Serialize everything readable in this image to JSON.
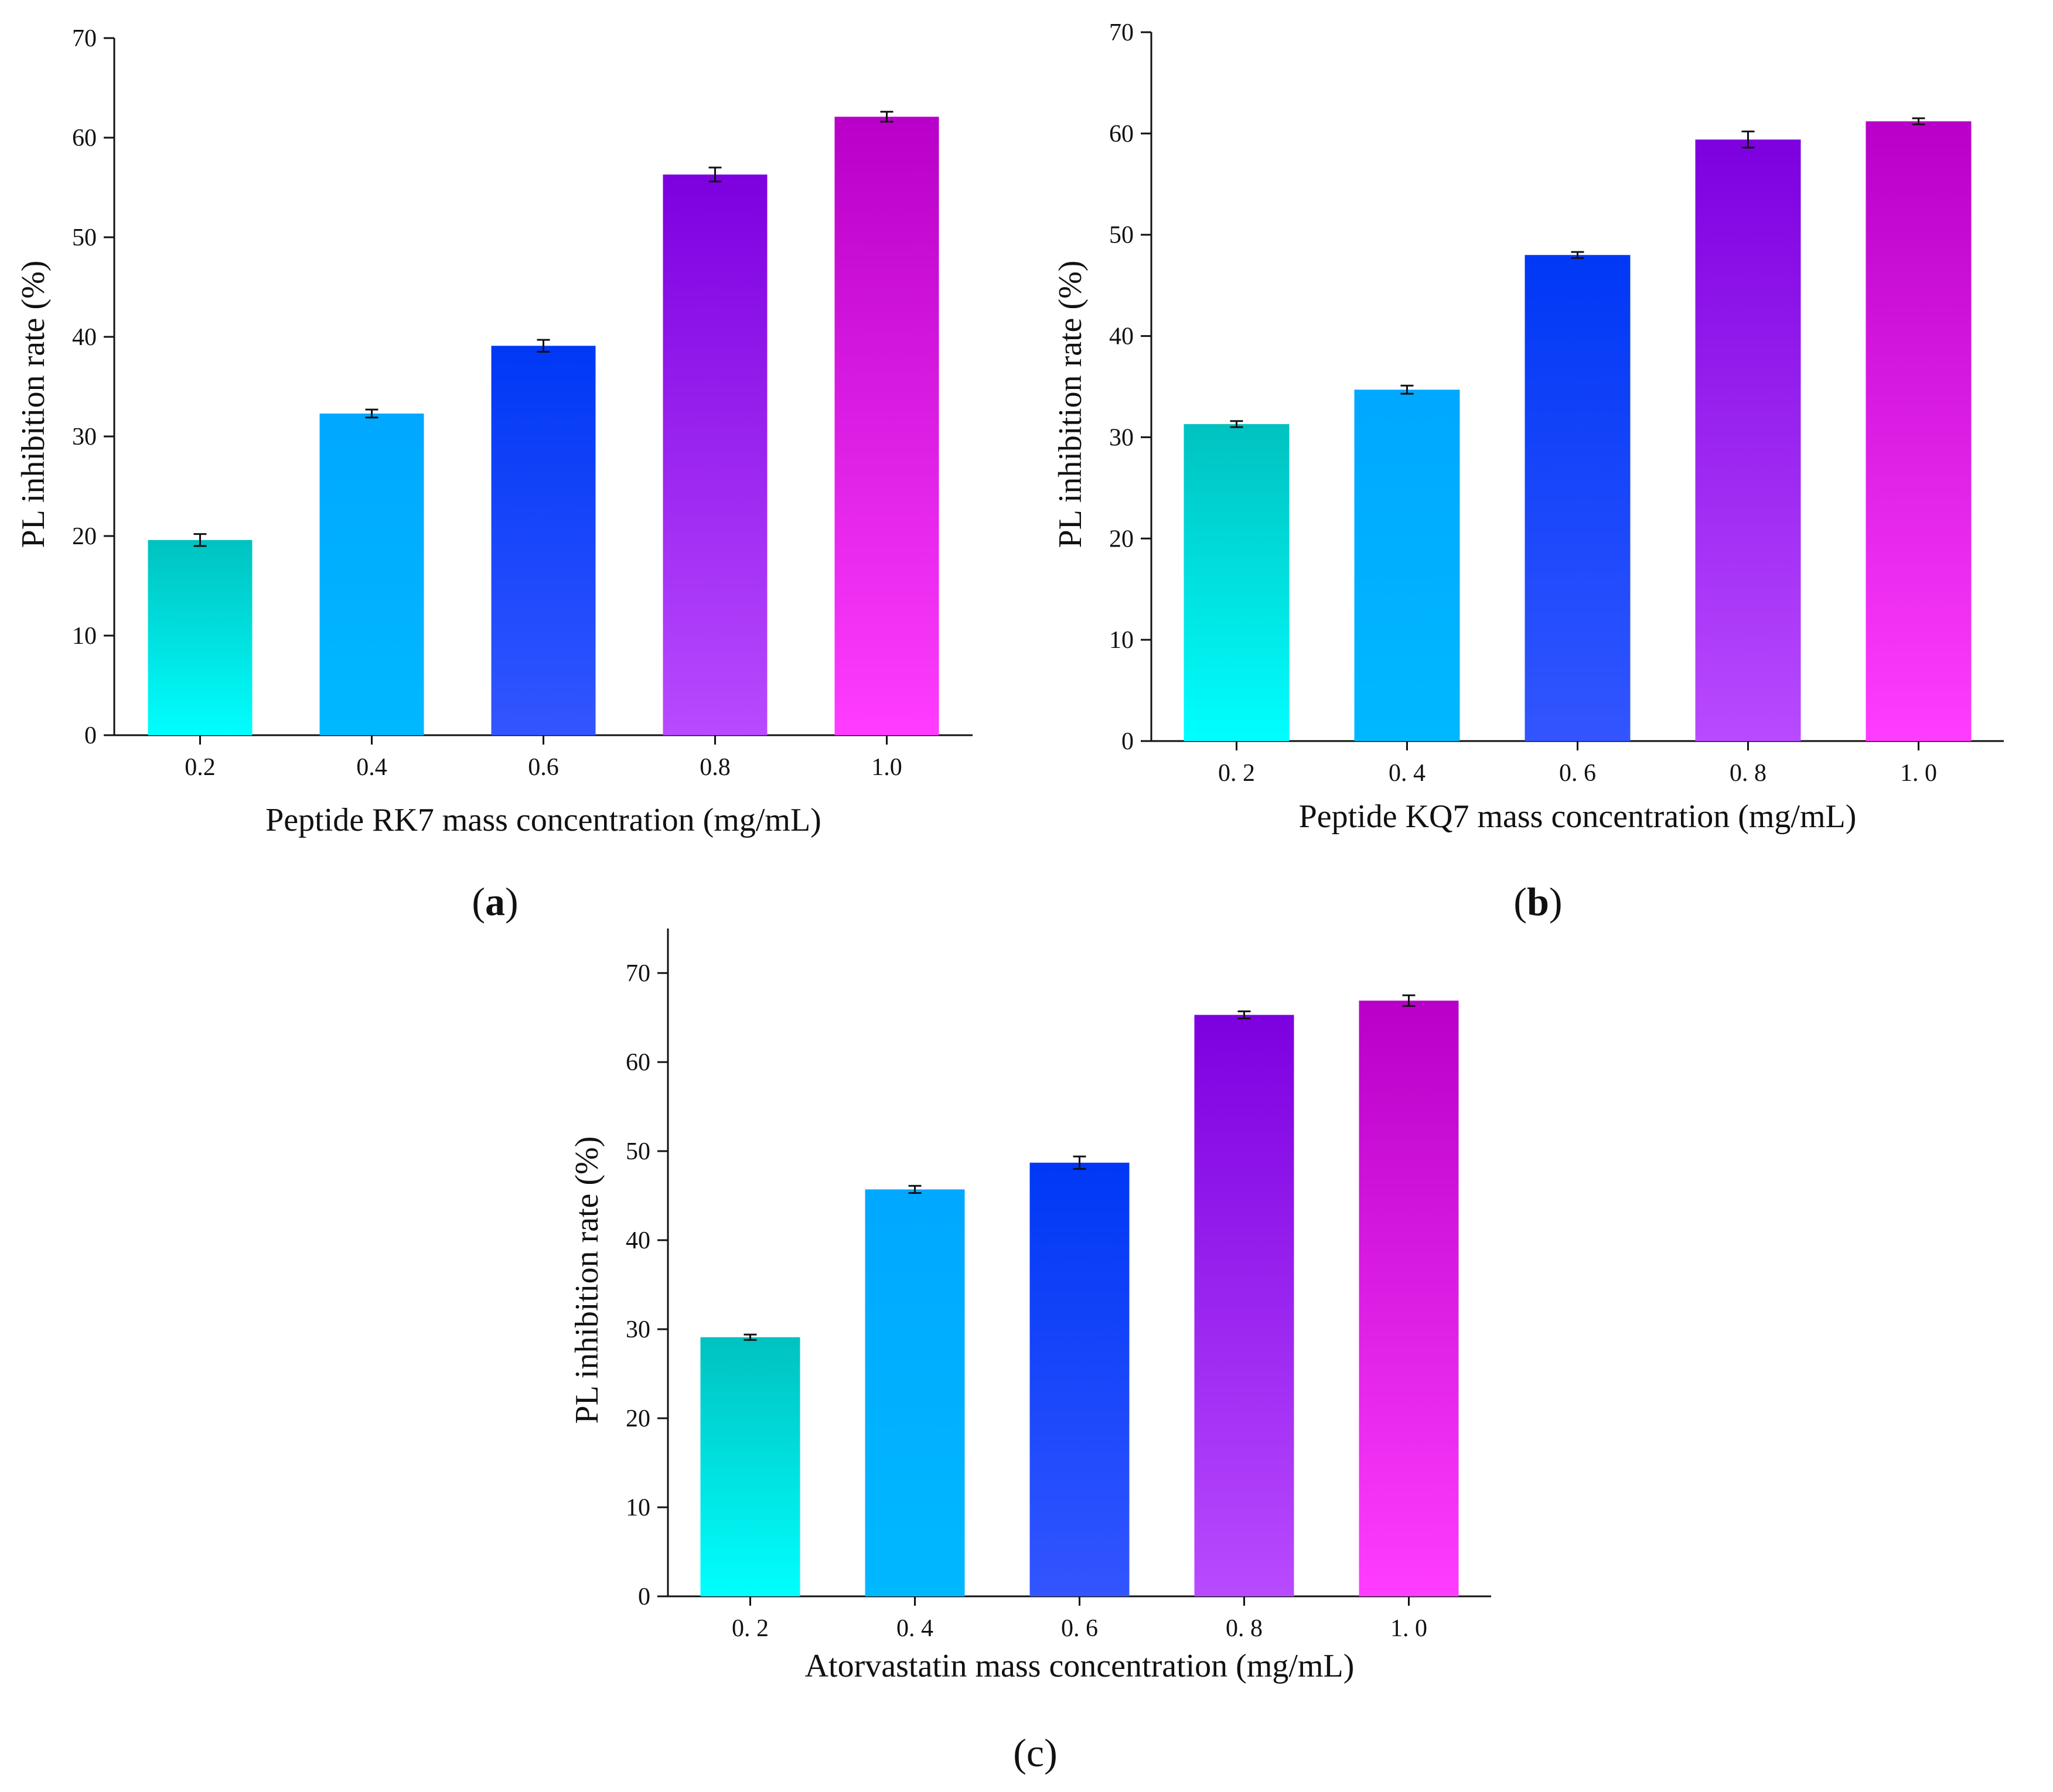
{
  "chart_data": [
    {
      "id": "a",
      "type": "bar",
      "panel_label": "a",
      "xlabel": "Peptide RK7 mass concentration (mg/mL)",
      "ylabel": "PL inhibition rate (%)",
      "categories": [
        "0.2",
        "0.4",
        "0.6",
        "0.8",
        "1.0"
      ],
      "values": [
        19.6,
        32.3,
        39.1,
        56.3,
        62.1
      ],
      "errors": [
        0.6,
        0.4,
        0.6,
        0.7,
        0.5
      ],
      "ylim": [
        0,
        70
      ],
      "yticks": [
        "0",
        "10",
        "20",
        "30",
        "40",
        "50",
        "60",
        "70"
      ],
      "grid": false
    },
    {
      "id": "b",
      "type": "bar",
      "panel_label": "b",
      "xlabel": "Peptide KQ7 mass concentration (mg/mL)",
      "ylabel": "PL inhibition rate (%)",
      "categories": [
        "0. 2",
        "0. 4",
        "0. 6",
        "0. 8",
        "1. 0"
      ],
      "values": [
        31.3,
        34.7,
        48.0,
        59.4,
        61.2
      ],
      "errors": [
        0.3,
        0.4,
        0.3,
        0.8,
        0.3
      ],
      "ylim": [
        0,
        70
      ],
      "yticks": [
        "0",
        "10",
        "20",
        "30",
        "40",
        "50",
        "60",
        "70"
      ],
      "grid": false
    },
    {
      "id": "c",
      "type": "bar",
      "panel_label": "c",
      "xlabel": "Atorvastatin mass concentration (mg/mL)",
      "ylabel": "PL inhibition rate (%)",
      "categories": [
        "0. 2",
        "0. 4",
        "0. 6",
        "0. 8",
        "1. 0"
      ],
      "values": [
        29.1,
        45.7,
        48.7,
        65.3,
        66.9
      ],
      "errors": [
        0.3,
        0.4,
        0.7,
        0.4,
        0.6
      ],
      "ylim": [
        0,
        75
      ],
      "yticks": [
        "0",
        "10",
        "20",
        "30",
        "40",
        "50",
        "60",
        "70"
      ],
      "grid": false
    }
  ],
  "colors": {
    "bar_tops": [
      "#00c2c0",
      "#00a8ff",
      "#0038f5",
      "#7d00e0",
      "#b800c8"
    ],
    "bar_bottoms": [
      "#00ffff",
      "#00b8ff",
      "#3255ff",
      "#b84aff",
      "#ff3cff"
    ],
    "axis": "#111111"
  }
}
